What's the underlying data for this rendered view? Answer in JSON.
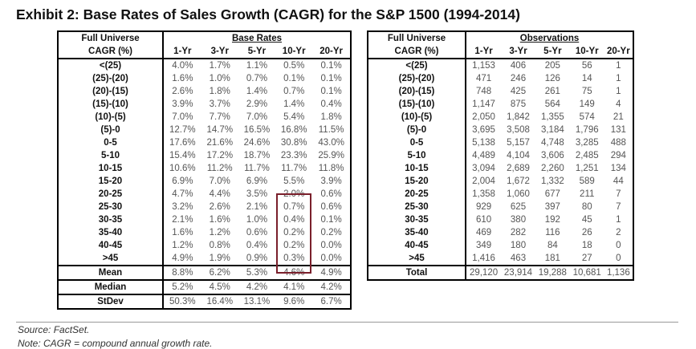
{
  "title": "Exhibit 2: Base Rates of Sales Growth (CAGR) for the S&P 1500 (1994-2014)",
  "left_table": {
    "corner_label": "Full Universe",
    "group_header": "Base Rates",
    "row_header": "CAGR (%)",
    "columns": [
      "1-Yr",
      "3-Yr",
      "5-Yr",
      "10-Yr",
      "20-Yr"
    ],
    "rows": [
      {
        "label": "<(25)",
        "values": [
          "4.0%",
          "1.7%",
          "1.1%",
          "0.5%",
          "0.1%"
        ]
      },
      {
        "label": "(25)-(20)",
        "values": [
          "1.6%",
          "1.0%",
          "0.7%",
          "0.1%",
          "0.1%"
        ]
      },
      {
        "label": "(20)-(15)",
        "values": [
          "2.6%",
          "1.8%",
          "1.4%",
          "0.7%",
          "0.1%"
        ]
      },
      {
        "label": "(15)-(10)",
        "values": [
          "3.9%",
          "3.7%",
          "2.9%",
          "1.4%",
          "0.4%"
        ]
      },
      {
        "label": "(10)-(5)",
        "values": [
          "7.0%",
          "7.7%",
          "7.0%",
          "5.4%",
          "1.8%"
        ]
      },
      {
        "label": "(5)-0",
        "values": [
          "12.7%",
          "14.7%",
          "16.5%",
          "16.8%",
          "11.5%"
        ]
      },
      {
        "label": "0-5",
        "values": [
          "17.6%",
          "21.6%",
          "24.6%",
          "30.8%",
          "43.0%"
        ]
      },
      {
        "label": "5-10",
        "values": [
          "15.4%",
          "17.2%",
          "18.7%",
          "23.3%",
          "25.9%"
        ]
      },
      {
        "label": "10-15",
        "values": [
          "10.6%",
          "11.2%",
          "11.7%",
          "11.7%",
          "11.8%"
        ]
      },
      {
        "label": "15-20",
        "values": [
          "6.9%",
          "7.0%",
          "6.9%",
          "5.5%",
          "3.9%"
        ]
      },
      {
        "label": "20-25",
        "values": [
          "4.7%",
          "4.4%",
          "3.5%",
          "2.0%",
          "0.6%"
        ]
      },
      {
        "label": "25-30",
        "values": [
          "3.2%",
          "2.6%",
          "2.1%",
          "0.7%",
          "0.6%"
        ]
      },
      {
        "label": "30-35",
        "values": [
          "2.1%",
          "1.6%",
          "1.0%",
          "0.4%",
          "0.1%"
        ]
      },
      {
        "label": "35-40",
        "values": [
          "1.6%",
          "1.2%",
          "0.6%",
          "0.2%",
          "0.2%"
        ]
      },
      {
        "label": "40-45",
        "values": [
          "1.2%",
          "0.8%",
          "0.4%",
          "0.2%",
          "0.0%"
        ]
      },
      {
        "label": ">45",
        "values": [
          "4.9%",
          "1.9%",
          "0.9%",
          "0.3%",
          "0.0%"
        ]
      }
    ],
    "summary": [
      {
        "label": "Mean",
        "values": [
          "8.8%",
          "6.2%",
          "5.3%",
          "4.6%",
          "4.9%"
        ]
      },
      {
        "label": "Median",
        "values": [
          "5.2%",
          "4.5%",
          "4.2%",
          "4.1%",
          "4.2%"
        ]
      },
      {
        "label": "StDev",
        "values": [
          "50.3%",
          "16.4%",
          "13.1%",
          "9.6%",
          "6.7%"
        ]
      }
    ]
  },
  "right_table": {
    "corner_label": "Full Universe",
    "group_header": "Observations",
    "row_header": "CAGR (%)",
    "columns": [
      "1-Yr",
      "3-Yr",
      "5-Yr",
      "10-Yr",
      "20-Yr"
    ],
    "rows": [
      {
        "label": "<(25)",
        "values": [
          "1,153",
          "406",
          "205",
          "56",
          "1"
        ]
      },
      {
        "label": "(25)-(20)",
        "values": [
          "471",
          "246",
          "126",
          "14",
          "1"
        ]
      },
      {
        "label": "(20)-(15)",
        "values": [
          "748",
          "425",
          "261",
          "75",
          "1"
        ]
      },
      {
        "label": "(15)-(10)",
        "values": [
          "1,147",
          "875",
          "564",
          "149",
          "4"
        ]
      },
      {
        "label": "(10)-(5)",
        "values": [
          "2,050",
          "1,842",
          "1,355",
          "574",
          "21"
        ]
      },
      {
        "label": "(5)-0",
        "values": [
          "3,695",
          "3,508",
          "3,184",
          "1,796",
          "131"
        ]
      },
      {
        "label": "0-5",
        "values": [
          "5,138",
          "5,157",
          "4,748",
          "3,285",
          "488"
        ]
      },
      {
        "label": "5-10",
        "values": [
          "4,489",
          "4,104",
          "3,606",
          "2,485",
          "294"
        ]
      },
      {
        "label": "10-15",
        "values": [
          "3,094",
          "2,689",
          "2,260",
          "1,251",
          "134"
        ]
      },
      {
        "label": "15-20",
        "values": [
          "2,004",
          "1,672",
          "1,332",
          "589",
          "44"
        ]
      },
      {
        "label": "20-25",
        "values": [
          "1,358",
          "1,060",
          "677",
          "211",
          "7"
        ]
      },
      {
        "label": "25-30",
        "values": [
          "929",
          "625",
          "397",
          "80",
          "7"
        ]
      },
      {
        "label": "30-35",
        "values": [
          "610",
          "380",
          "192",
          "45",
          "1"
        ]
      },
      {
        "label": "35-40",
        "values": [
          "469",
          "282",
          "116",
          "26",
          "2"
        ]
      },
      {
        "label": "40-45",
        "values": [
          "349",
          "180",
          "84",
          "18",
          "0"
        ]
      },
      {
        "label": ">45",
        "values": [
          "1,416",
          "463",
          "181",
          "27",
          "0"
        ]
      }
    ],
    "summary": [
      {
        "label": "Total",
        "values": [
          "29,120",
          "23,914",
          "19,288",
          "10,681",
          "1,136"
        ]
      }
    ]
  },
  "highlight_color": "#7a1f2b",
  "source": "Source: FactSet.",
  "note": "Note: CAGR = compound annual growth rate."
}
